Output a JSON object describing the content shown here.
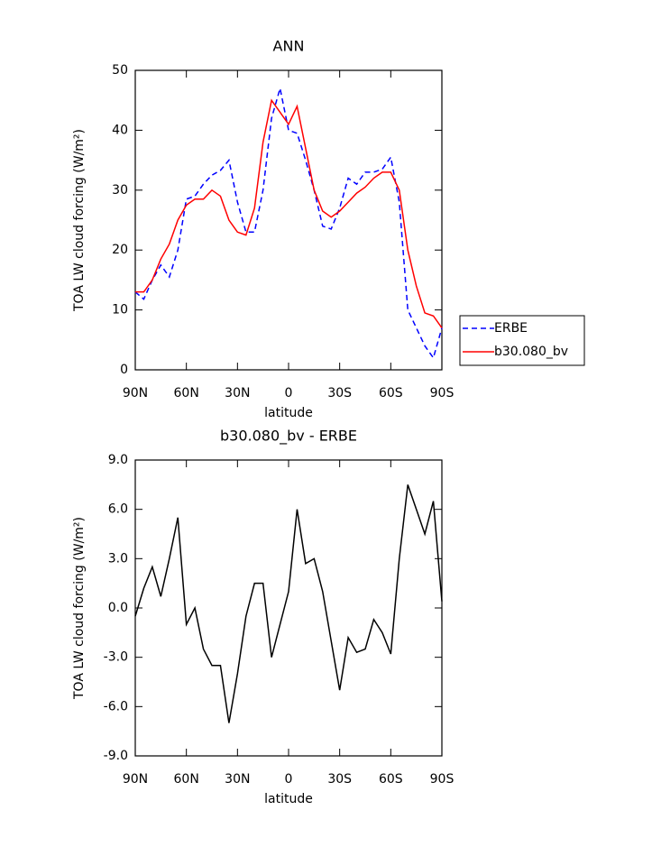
{
  "chart_data": [
    {
      "type": "line",
      "title": "ANN",
      "x_label": "latitude",
      "y_label": "TOA LW cloud forcing (W/m²)",
      "x": [
        90,
        85,
        80,
        75,
        70,
        65,
        60,
        55,
        50,
        45,
        40,
        35,
        30,
        25,
        20,
        15,
        10,
        5,
        0,
        -5,
        -10,
        -15,
        -20,
        -25,
        -30,
        -35,
        -40,
        -45,
        -50,
        -55,
        -60,
        -65,
        -70,
        -75,
        -80,
        -85,
        -90
      ],
      "xlim": [
        90,
        -90
      ],
      "xticks": [
        {
          "value": 90,
          "label": "90N"
        },
        {
          "value": 60,
          "label": "60N"
        },
        {
          "value": 30,
          "label": "30N"
        },
        0,
        {
          "value": -30,
          "label": "30S"
        },
        {
          "value": -60,
          "label": "60S"
        },
        {
          "value": -90,
          "label": "90S"
        }
      ],
      "ylim": [
        0,
        50
      ],
      "yticks": [
        0,
        10,
        20,
        30,
        40,
        50
      ],
      "legend": "right",
      "series": [
        {
          "name": "ERBE",
          "color": "#0000ff",
          "dash": true,
          "values": [
            13,
            11.8,
            15,
            17.5,
            15.5,
            20,
            28.5,
            29,
            31,
            32.5,
            33.3,
            35,
            28,
            23,
            23,
            30,
            42,
            47,
            40,
            39.5,
            35,
            30,
            24,
            23.5,
            27,
            32,
            31,
            33,
            33,
            33.5,
            35.5,
            28,
            10,
            7,
            4,
            2,
            7
          ]
        },
        {
          "name": "b30.080_bv",
          "color": "#ff0000",
          "dash": false,
          "values": [
            13,
            13,
            15,
            18.5,
            21,
            25,
            27.5,
            28.5,
            28.5,
            30,
            29,
            25,
            23,
            22.5,
            27,
            38,
            45,
            43,
            41,
            44,
            37,
            30,
            26.5,
            25.5,
            26.5,
            28,
            29.5,
            30.5,
            32,
            33,
            33,
            30,
            20,
            14,
            9.5,
            9,
            7
          ]
        }
      ]
    },
    {
      "type": "line",
      "title": "b30.080_bv - ERBE",
      "x_label": "latitude",
      "y_label": "TOA LW cloud forcing (W/m²)",
      "x": [
        90,
        85,
        80,
        75,
        70,
        65,
        60,
        55,
        50,
        45,
        40,
        35,
        30,
        25,
        20,
        15,
        10,
        5,
        0,
        -5,
        -10,
        -15,
        -20,
        -25,
        -30,
        -35,
        -40,
        -45,
        -50,
        -55,
        -60,
        -65,
        -70,
        -75,
        -80,
        -85,
        -90
      ],
      "xlim": [
        90,
        -90
      ],
      "xticks": [
        {
          "value": 90,
          "label": "90N"
        },
        {
          "value": 60,
          "label": "60N"
        },
        {
          "value": 30,
          "label": "30N"
        },
        0,
        {
          "value": -30,
          "label": "30S"
        },
        {
          "value": -60,
          "label": "60S"
        },
        {
          "value": -90,
          "label": "90S"
        }
      ],
      "ylim": [
        -9,
        9
      ],
      "yticks": [
        {
          "value": 9,
          "label": "9.0"
        },
        {
          "value": 6,
          "label": "6.0"
        },
        {
          "value": 3,
          "label": "3.0"
        },
        {
          "value": 0,
          "label": "0.0"
        },
        {
          "value": -3,
          "label": "-3.0"
        },
        {
          "value": -6,
          "label": "-6.0"
        },
        {
          "value": -9,
          "label": "-9.0"
        }
      ],
      "color": "#000000",
      "values": [
        -0.5,
        1.2,
        2.5,
        0.7,
        3,
        5.5,
        -1,
        0,
        -2.5,
        -3.5,
        -3.5,
        -7,
        -4,
        -0.5,
        1.5,
        1.5,
        -3,
        -1,
        1,
        6,
        2.7,
        3,
        1,
        -2,
        -5,
        -1.8,
        -2.7,
        -2.5,
        -0.7,
        -1.5,
        -2.8,
        3,
        7.5,
        6,
        4.5,
        6.5,
        0.4
      ]
    }
  ]
}
